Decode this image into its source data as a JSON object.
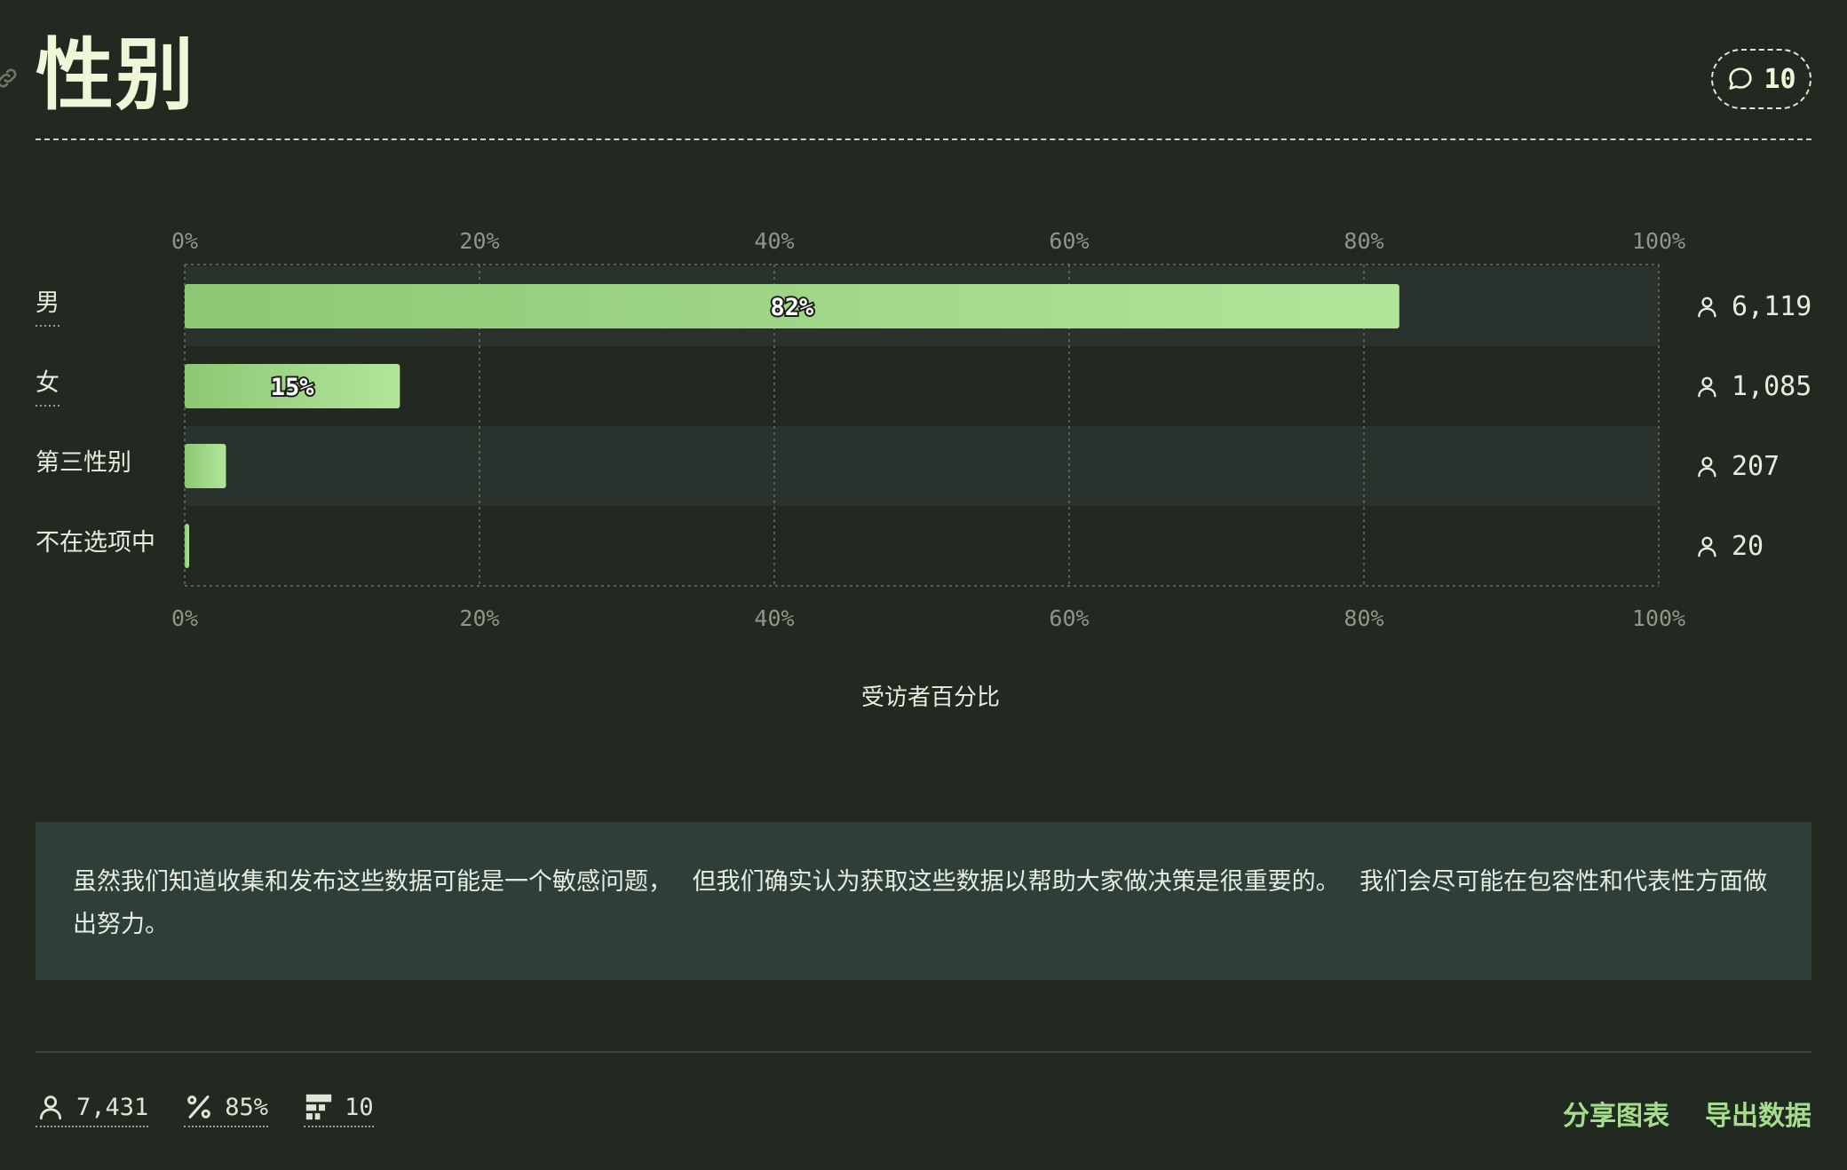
{
  "header": {
    "title": "性别",
    "comment_count": "10"
  },
  "chart_data": {
    "type": "bar",
    "orientation": "horizontal",
    "categories": [
      "男",
      "女",
      "第三性别",
      "不在选项中"
    ],
    "values": [
      82.4,
      14.6,
      2.8,
      0.3
    ],
    "data_labels": [
      "82%",
      "15%",
      "",
      ""
    ],
    "counts": [
      "6,119",
      "1,085",
      "207",
      "20"
    ],
    "xlim": [
      0,
      100
    ],
    "tick_labels": [
      "0%",
      "20%",
      "40%",
      "60%",
      "80%",
      "100%"
    ],
    "xlabel": "受访者百分比",
    "grid": true,
    "colors": {
      "bar_start": "#8cc873",
      "bar_end": "#b2e59a",
      "row_alt": "#2a322d"
    }
  },
  "notice": "虽然我们知道收集和发布这些数据可能是一个敏感问题， 但我们确实认为获取这些数据以帮助大家做决策是很重要的。 我们会尽可能在包容性和代表性方面做出努力。",
  "footer": {
    "respondents": "7,431",
    "completion": "85%",
    "questions": "10",
    "share_label": "分享图表",
    "export_label": "导出数据"
  }
}
